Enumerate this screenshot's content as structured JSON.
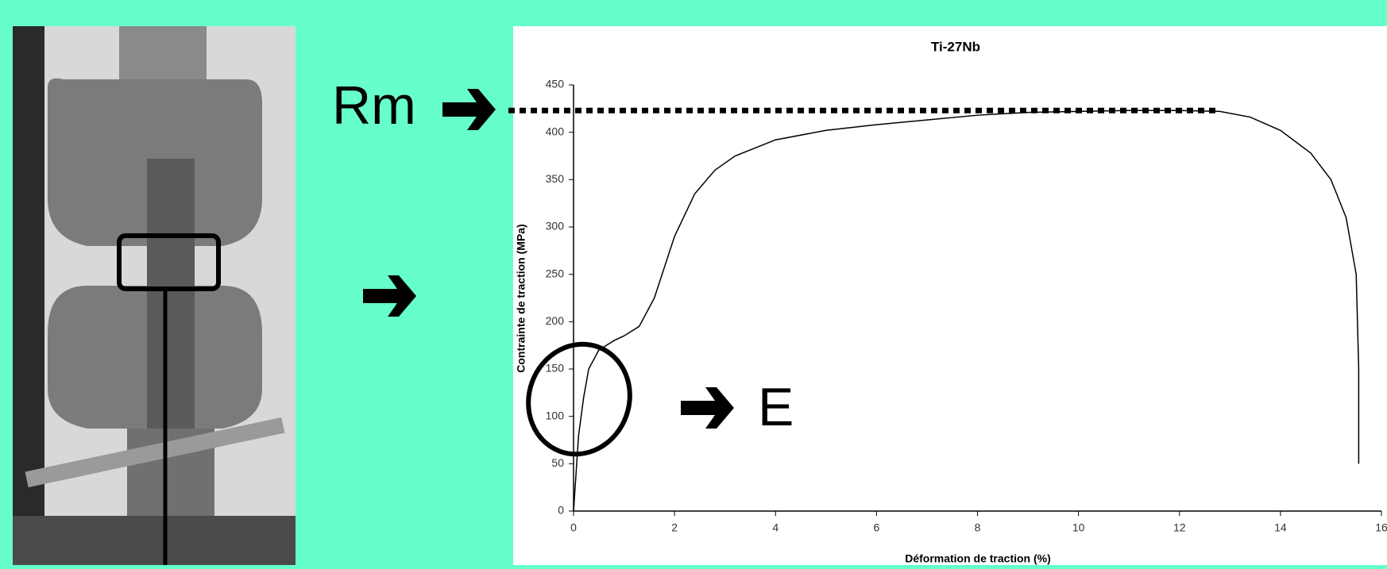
{
  "chart_data": {
    "type": "line",
    "title": "Ti-27Nb",
    "x_label": "Déformation de traction (%)",
    "y_label": "Contrainte de traction (MPa)",
    "annotations": [
      "Rm",
      "E"
    ],
    "x": [
      0,
      0.05,
      0.1,
      0.2,
      0.3,
      0.5,
      0.8,
      1.0,
      1.3,
      1.6,
      2.0,
      2.4,
      2.8,
      3.2,
      4,
      5,
      6,
      7,
      8,
      9,
      10,
      11,
      12,
      12.8,
      13.4,
      14,
      14.6,
      15,
      15.3,
      15.5,
      15.55,
      15.55
    ],
    "values": [
      0,
      40,
      80,
      120,
      150,
      170,
      180,
      185,
      195,
      225,
      290,
      335,
      360,
      375,
      392,
      402,
      408,
      413,
      418,
      421,
      422,
      423,
      423,
      422,
      416,
      402,
      378,
      350,
      310,
      250,
      150,
      50
    ],
    "color": "#000000",
    "rm_line": 423,
    "rm_line_end": 12.8,
    "xlim": [
      0,
      16
    ],
    "ylim": [
      0,
      450
    ],
    "xticks": [
      0,
      2,
      4,
      6,
      8,
      10,
      12,
      14,
      16
    ],
    "yticks": [
      0,
      50,
      100,
      150,
      200,
      250,
      300,
      350,
      400,
      450
    ]
  }
}
